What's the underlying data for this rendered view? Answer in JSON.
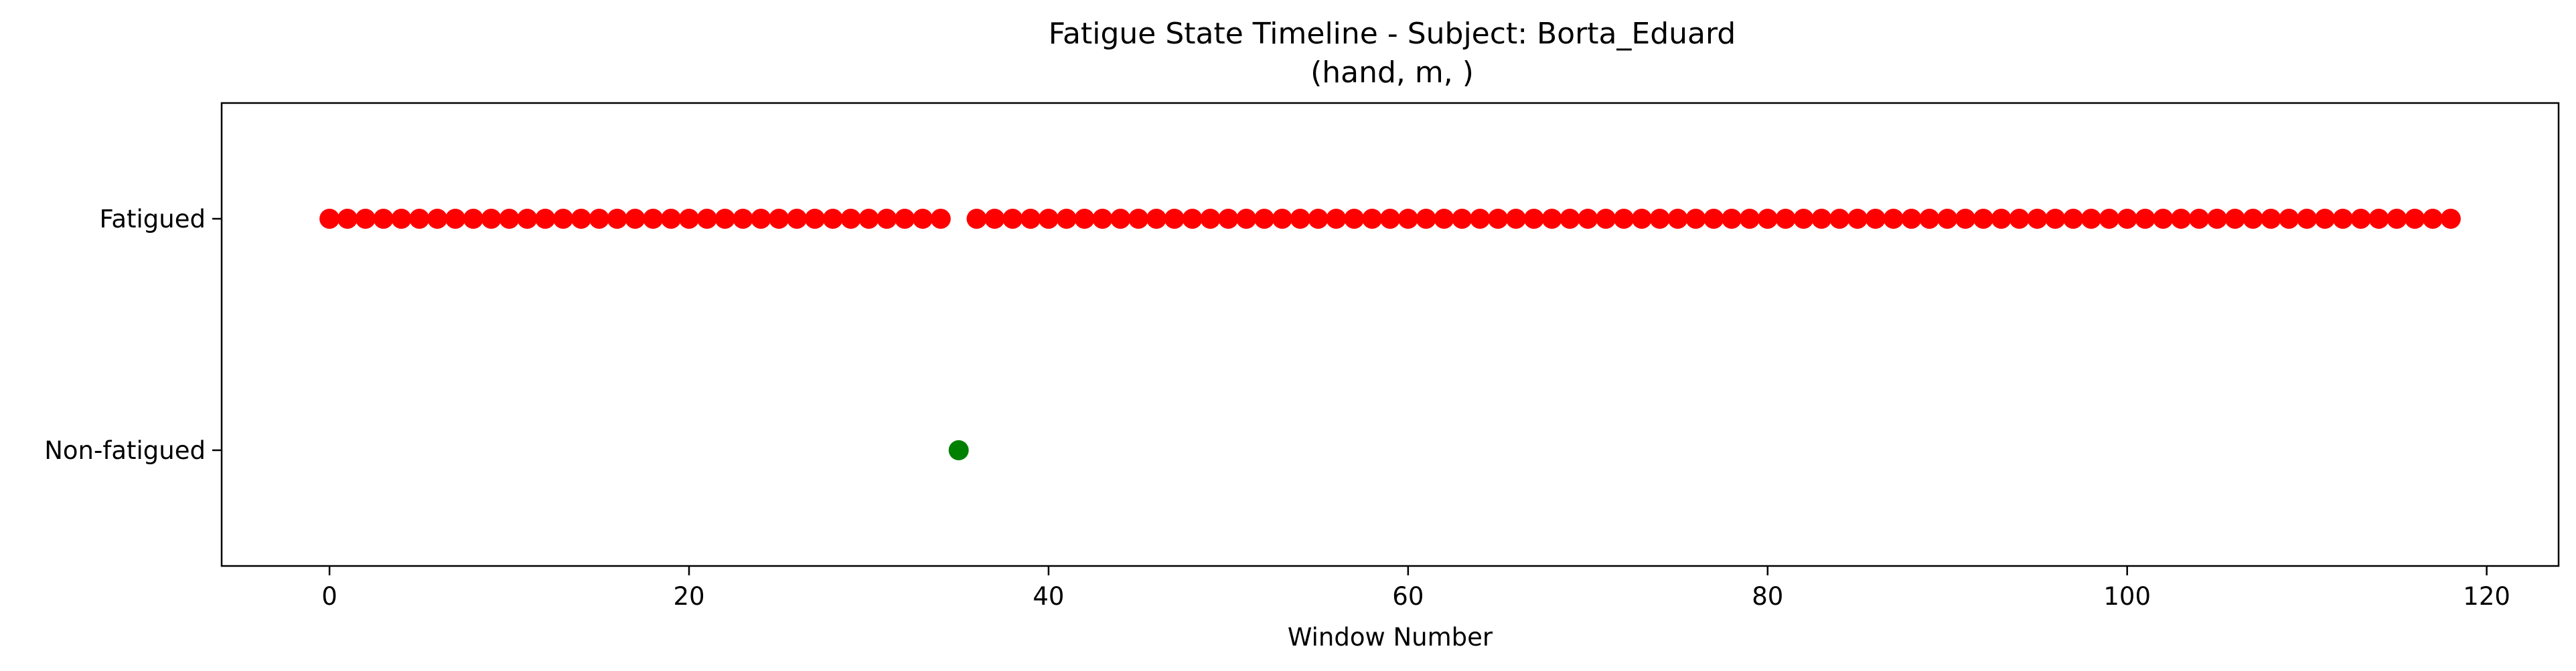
{
  "chart_data": {
    "type": "scatter",
    "title": "Fatigue State Timeline - Subject: Borta_Eduard",
    "subtitle": "(hand, m, )",
    "xlabel": "Window Number",
    "ylabel": "",
    "xlim": [
      -6,
      124
    ],
    "ylim": [
      -0.5,
      1.5
    ],
    "x_ticks": [
      0,
      20,
      40,
      60,
      80,
      100,
      120
    ],
    "y_ticks": [
      {
        "value": 0,
        "label": "Non-fatigued"
      },
      {
        "value": 1,
        "label": "Fatigued"
      }
    ],
    "grid": false,
    "legend": "none",
    "colors": {
      "fatigued": "#ff0000",
      "non_fatigued": "#008000"
    },
    "x": [
      0,
      1,
      2,
      3,
      4,
      5,
      6,
      7,
      8,
      9,
      10,
      11,
      12,
      13,
      14,
      15,
      16,
      17,
      18,
      19,
      20,
      21,
      22,
      23,
      24,
      25,
      26,
      27,
      28,
      29,
      30,
      31,
      32,
      33,
      34,
      35,
      36,
      37,
      38,
      39,
      40,
      41,
      42,
      43,
      44,
      45,
      46,
      47,
      48,
      49,
      50,
      51,
      52,
      53,
      54,
      55,
      56,
      57,
      58,
      59,
      60,
      61,
      62,
      63,
      64,
      65,
      66,
      67,
      68,
      69,
      70,
      71,
      72,
      73,
      74,
      75,
      76,
      77,
      78,
      79,
      80,
      81,
      82,
      83,
      84,
      85,
      86,
      87,
      88,
      89,
      90,
      91,
      92,
      93,
      94,
      95,
      96,
      97,
      98,
      99,
      100,
      101,
      102,
      103,
      104,
      105,
      106,
      107,
      108,
      109,
      110,
      111,
      112,
      113,
      114,
      115,
      116,
      117,
      118
    ],
    "y": [
      1,
      1,
      1,
      1,
      1,
      1,
      1,
      1,
      1,
      1,
      1,
      1,
      1,
      1,
      1,
      1,
      1,
      1,
      1,
      1,
      1,
      1,
      1,
      1,
      1,
      1,
      1,
      1,
      1,
      1,
      1,
      1,
      1,
      1,
      1,
      0,
      1,
      1,
      1,
      1,
      1,
      1,
      1,
      1,
      1,
      1,
      1,
      1,
      1,
      1,
      1,
      1,
      1,
      1,
      1,
      1,
      1,
      1,
      1,
      1,
      1,
      1,
      1,
      1,
      1,
      1,
      1,
      1,
      1,
      1,
      1,
      1,
      1,
      1,
      1,
      1,
      1,
      1,
      1,
      1,
      1,
      1,
      1,
      1,
      1,
      1,
      1,
      1,
      1,
      1,
      1,
      1,
      1,
      1,
      1,
      1,
      1,
      1,
      1,
      1,
      1,
      1,
      1,
      1,
      1,
      1,
      1,
      1,
      1,
      1,
      1,
      1,
      1,
      1,
      1,
      1,
      1,
      1,
      1
    ]
  }
}
